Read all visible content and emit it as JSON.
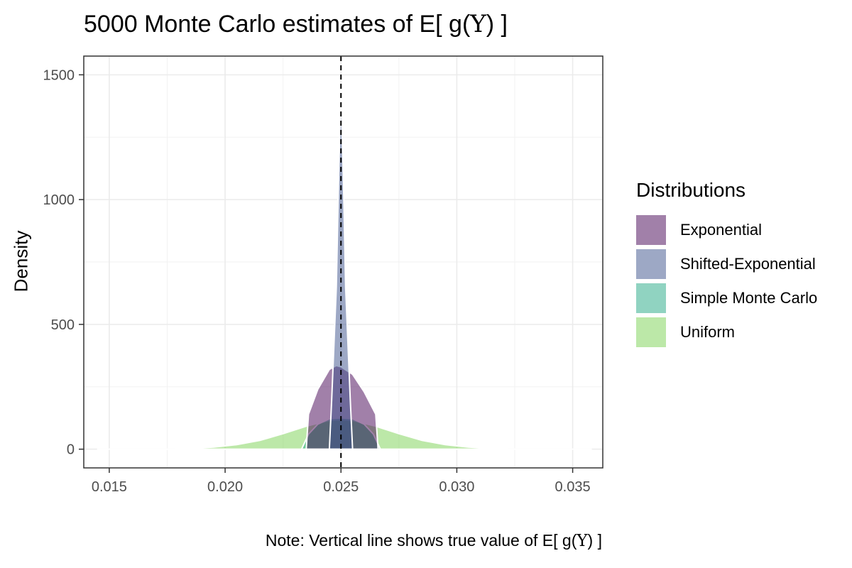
{
  "chart_data": {
    "type": "area",
    "title_prefix": "5000 Monte Carlo estimates of E[ g(",
    "title_var": "Y",
    "title_suffix": ") ]",
    "xlabel": "",
    "ylabel": "Density",
    "caption_prefix": "Note: Vertical line shows true value of E[ g(",
    "caption_var": "Y",
    "caption_suffix": ") ]",
    "xlim": [
      0.0139,
      0.0363
    ],
    "ylim": [
      -75,
      1575
    ],
    "x_ticks": [
      0.015,
      0.02,
      0.025,
      0.03,
      0.035
    ],
    "x_tick_labels": [
      "0.015",
      "0.020",
      "0.025",
      "0.030",
      "0.035"
    ],
    "y_ticks": [
      0,
      500,
      1000,
      1500
    ],
    "y_tick_labels": [
      "0",
      "500",
      "1000",
      "1500"
    ],
    "grid": true,
    "reference_line": {
      "x": 0.025,
      "style": "dashed"
    },
    "legend": {
      "title": "Distributions",
      "position": "right"
    },
    "series": [
      {
        "name": "Uniform",
        "color": "#7ad151",
        "points": [
          [
            0.0145,
            0
          ],
          [
            0.0178,
            0
          ],
          [
            0.0185,
            3
          ],
          [
            0.0195,
            8
          ],
          [
            0.0205,
            18
          ],
          [
            0.0215,
            35
          ],
          [
            0.0225,
            62
          ],
          [
            0.0235,
            92
          ],
          [
            0.0245,
            115
          ],
          [
            0.025,
            118
          ],
          [
            0.0255,
            115
          ],
          [
            0.0265,
            92
          ],
          [
            0.0275,
            62
          ],
          [
            0.0285,
            35
          ],
          [
            0.0295,
            18
          ],
          [
            0.0305,
            8
          ],
          [
            0.0315,
            3
          ],
          [
            0.0322,
            0
          ],
          [
            0.0358,
            0
          ]
        ]
      },
      {
        "name": "Simple Monte Carlo",
        "color": "#22a884",
        "points": [
          [
            0.0233,
            0
          ],
          [
            0.0236,
            60
          ],
          [
            0.024,
            100
          ],
          [
            0.0245,
            122
          ],
          [
            0.025,
            125
          ],
          [
            0.0255,
            122
          ],
          [
            0.026,
            100
          ],
          [
            0.0264,
            60
          ],
          [
            0.0267,
            0
          ]
        ]
      },
      {
        "name": "Exponential",
        "color": "#440154",
        "points": [
          [
            0.0235,
            0
          ],
          [
            0.0236,
            140
          ],
          [
            0.024,
            240
          ],
          [
            0.0245,
            320
          ],
          [
            0.0248,
            335
          ],
          [
            0.025,
            330
          ],
          [
            0.0255,
            300
          ],
          [
            0.026,
            230
          ],
          [
            0.0265,
            140
          ],
          [
            0.0266,
            0
          ]
        ]
      },
      {
        "name": "Shifted-Exponential",
        "color": "#3b528b",
        "points": [
          [
            0.0245,
            0
          ],
          [
            0.0246,
            200
          ],
          [
            0.0248,
            650
          ],
          [
            0.0249,
            1100
          ],
          [
            0.025,
            1450
          ],
          [
            0.0251,
            1100
          ],
          [
            0.0252,
            650
          ],
          [
            0.0254,
            200
          ],
          [
            0.0255,
            0
          ]
        ]
      }
    ],
    "legend_entries": [
      {
        "label": "Exponential",
        "color": "#440154"
      },
      {
        "label": "Shifted-Exponential",
        "color": "#3b528b"
      },
      {
        "label": "Simple Monte Carlo",
        "color": "#22a884"
      },
      {
        "label": "Uniform",
        "color": "#7ad151"
      }
    ],
    "fill_opacity": 0.5
  }
}
